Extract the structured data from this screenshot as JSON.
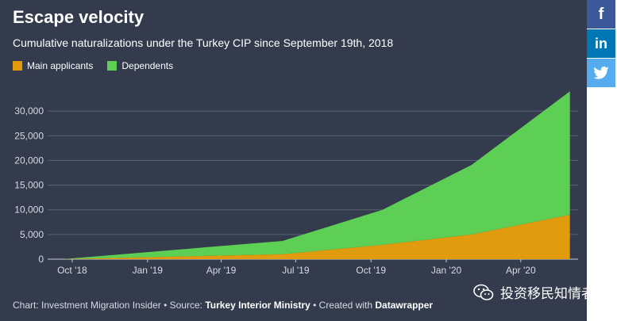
{
  "chart_data": {
    "type": "area",
    "title": "Escape velocity",
    "subtitle": "Cumulative naturalizations under the Turkey CIP since September 19th, 2018",
    "stacked": true,
    "x_ticks": [
      "Oct '18",
      "Jan '19",
      "Apr '19",
      "Jul '19",
      "Oct '19",
      "Jan '20",
      "Apr '20"
    ],
    "y_ticks": [
      "0",
      "5,000",
      "10,000",
      "15,000",
      "20,000",
      "25,000",
      "30,000"
    ],
    "ylim": [
      0,
      35000
    ],
    "grid": true,
    "legend_position": "top-left",
    "x": [
      "2018-09-19",
      "2019-06-15",
      "2019-10-15",
      "2020-02-01",
      "2020-05-31"
    ],
    "series": [
      {
        "name": "Main applicants",
        "color": "#e09b0e",
        "values": [
          0,
          1000,
          2900,
          5000,
          9000
        ]
      },
      {
        "name": "Dependents",
        "color": "#5ecf55",
        "values": [
          0,
          2700,
          7100,
          14100,
          25000
        ]
      }
    ]
  },
  "footer": {
    "prefix": "Chart: Investment Migration Insider • Source: ",
    "source": "Turkey Interior Ministry",
    "middle": " • Created with ",
    "tool": "Datawrapper"
  },
  "share": {
    "facebook": "f",
    "linkedin": "in"
  },
  "icons": {
    "twitter": "twitter-icon",
    "wechat": "wechat-icon"
  },
  "watermark": "投资移民知情者"
}
